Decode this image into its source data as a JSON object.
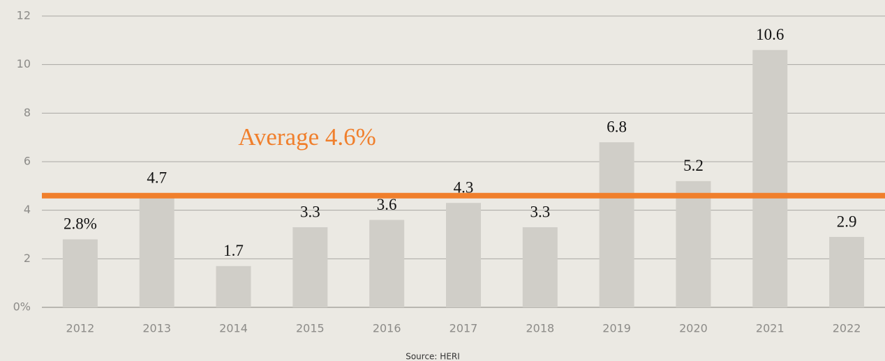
{
  "chart_data": {
    "type": "bar",
    "categories": [
      "2012",
      "2013",
      "2014",
      "2015",
      "2016",
      "2017",
      "2018",
      "2019",
      "2020",
      "2021",
      "2022"
    ],
    "values": [
      2.8,
      4.7,
      1.7,
      3.3,
      3.6,
      4.3,
      3.3,
      6.8,
      5.2,
      10.6,
      2.9
    ],
    "value_labels": [
      "2.8%",
      "4.7",
      "1.7",
      "3.3",
      "3.6",
      "4.3",
      "3.3",
      "6.8",
      "5.2",
      "10.6",
      "2.9"
    ],
    "color": "#d0cec8",
    "average": {
      "value": 4.6,
      "label": "Average 4.6%",
      "color": "#f07f2c"
    },
    "ylim": [
      0,
      12
    ],
    "yticks": [
      {
        "value": 0,
        "label": "0%"
      },
      2,
      4,
      6,
      8,
      10,
      12
    ],
    "grid": true,
    "source": "Source: HERI"
  }
}
